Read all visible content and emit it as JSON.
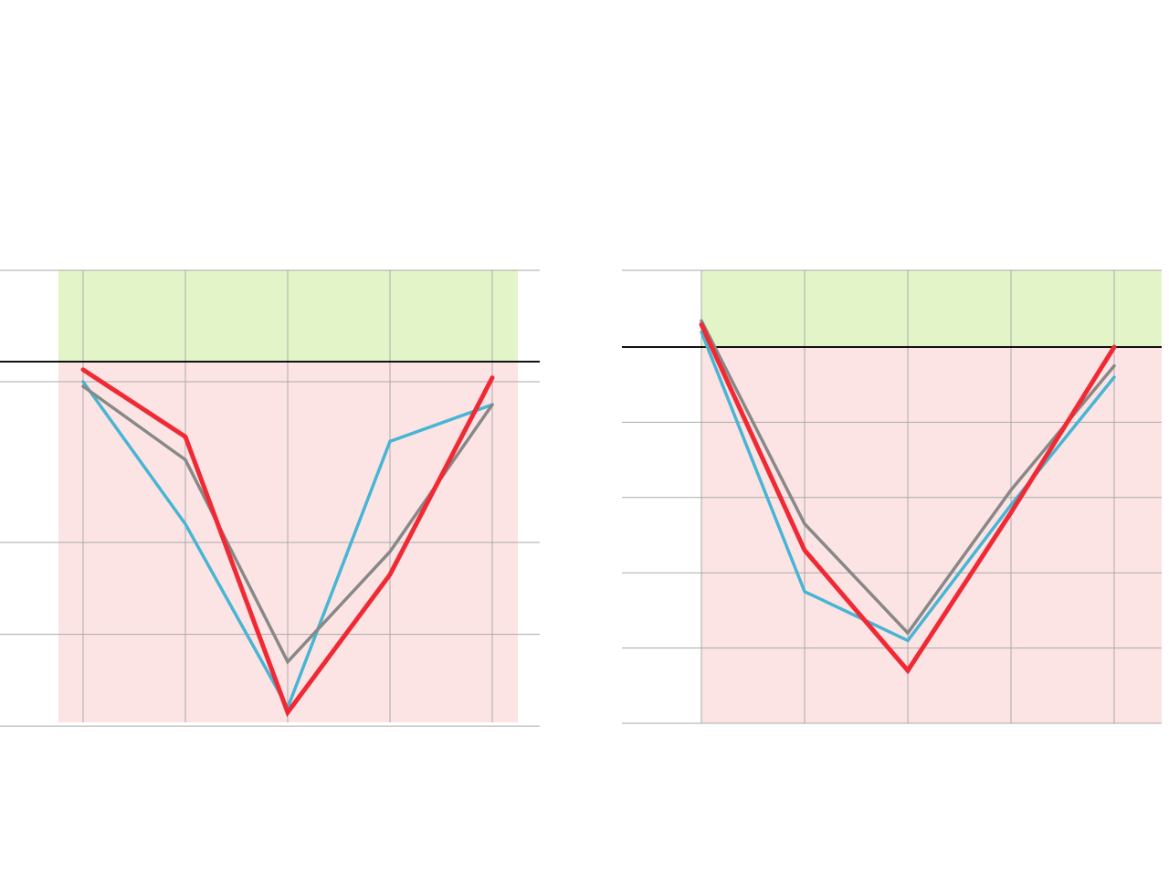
{
  "colors": {
    "above_zone": "#e3f5c8",
    "below_zone": "#fce4e4",
    "grid": "#aaaaaa",
    "baseline": "#111111"
  },
  "chart_data": [
    {
      "type": "line",
      "x": [
        1,
        2,
        3,
        4,
        5
      ],
      "ylim": [
        -4,
        1
      ],
      "yticks": [
        -4,
        -3,
        -2,
        -0.25
      ],
      "baseline": 0,
      "shading": {
        "above_baseline": "green",
        "below_baseline": "red"
      },
      "grid": true,
      "series": [
        {
          "color": "#47b5d3",
          "values": [
            -0.25,
            -1.8,
            -3.8,
            -0.9,
            -0.5
          ]
        },
        {
          "color": "#888888",
          "values": [
            -0.3,
            -1.1,
            -3.3,
            -2.1,
            -0.5
          ]
        },
        {
          "color": "#f02a35",
          "values": [
            -0.1,
            -0.85,
            -3.85,
            -2.35,
            -0.2
          ]
        }
      ]
    },
    {
      "type": "line",
      "x": [
        1,
        2,
        3,
        4,
        5
      ],
      "ylim": [
        -5,
        1
      ],
      "yticks": [
        -5,
        -4,
        -3,
        -2,
        -1,
        0
      ],
      "baseline": 0,
      "shading": {
        "above_baseline": "green",
        "below_baseline": "red"
      },
      "grid": true,
      "series": [
        {
          "color": "#47b5d3",
          "values": [
            0.2,
            -3.25,
            -3.9,
            -2.1,
            -0.4
          ]
        },
        {
          "color": "#888888",
          "values": [
            0.35,
            -2.35,
            -3.8,
            -1.9,
            -0.25
          ]
        },
        {
          "color": "#f02a35",
          "values": [
            0.3,
            -2.7,
            -4.3,
            -2.2,
            0.0
          ]
        }
      ]
    }
  ]
}
